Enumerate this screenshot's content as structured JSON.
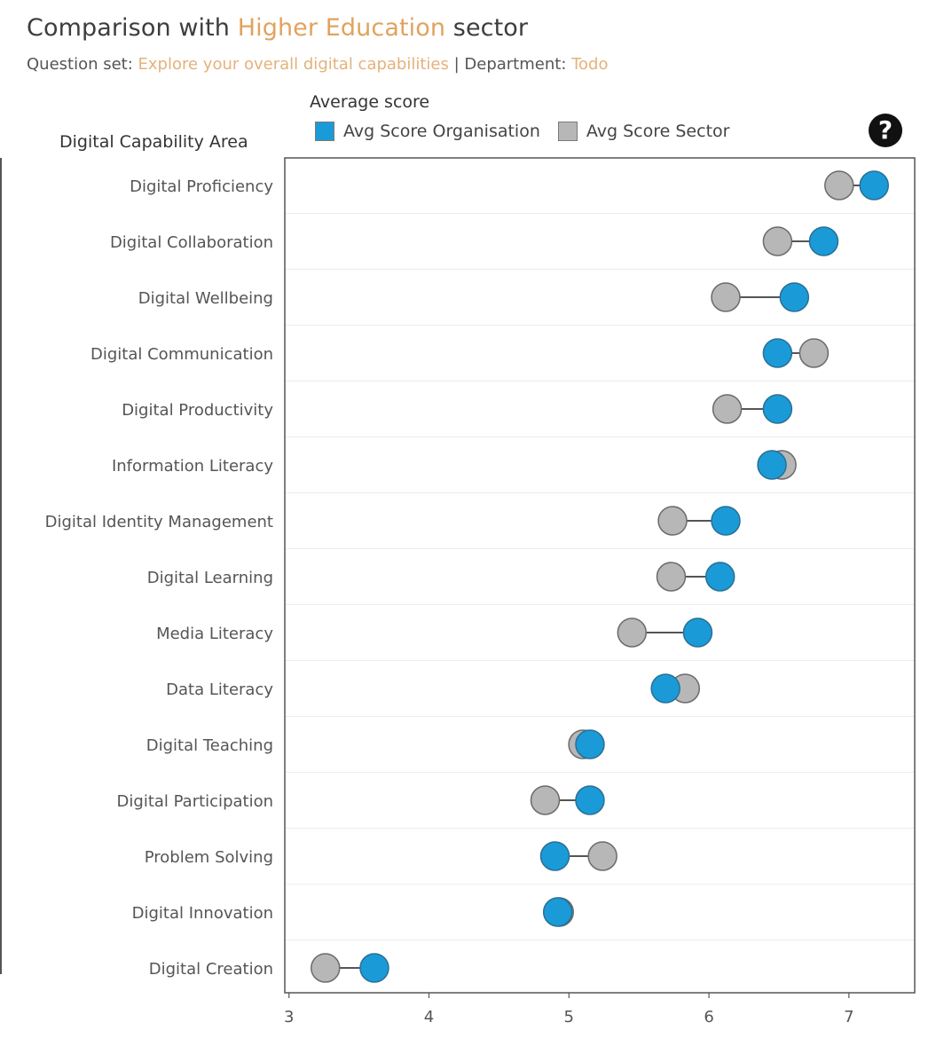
{
  "title": {
    "prefix": "Comparison with ",
    "highlight": "Higher Education",
    "suffix": " sector"
  },
  "subtitle": {
    "question_label": "Question set: ",
    "question_value": "Explore your overall digital capabilities",
    "separator": " | ",
    "department_label": "Department: ",
    "department_value": "Todo"
  },
  "help_symbol": "?",
  "colors": {
    "organisation": "#1a9bd7",
    "sector": "#b7b7b7",
    "connector": "#555555",
    "title_highlight": "#e0a35e"
  },
  "chart_data": {
    "type": "dumbbell",
    "title": "Comparison with Higher Education sector",
    "legend_title": "Average score",
    "legend_placement": "top",
    "category_axis_title": "Digital Capability Area",
    "xlabel": "",
    "xlim": [
      2.97,
      7.47
    ],
    "x_ticks": [
      3,
      4,
      5,
      6,
      7
    ],
    "grid": "horizontal-row-lines",
    "categories": [
      "Digital Proficiency",
      "Digital Collaboration",
      "Digital Wellbeing",
      "Digital Communication",
      "Digital Productivity",
      "Information Literacy",
      "Digital Identity Management",
      "Digital Learning",
      "Media Literacy",
      "Data Literacy",
      "Digital Teaching",
      "Digital Participation",
      "Problem Solving",
      "Digital Innovation",
      "Digital Creation"
    ],
    "series": [
      {
        "name": "Avg Score Organisation",
        "color": "#1a9bd7",
        "values": [
          7.18,
          6.82,
          6.61,
          6.49,
          6.49,
          6.45,
          6.12,
          6.08,
          5.92,
          5.69,
          5.15,
          5.15,
          4.9,
          4.92,
          3.61
        ]
      },
      {
        "name": "Avg Score Sector",
        "color": "#b7b7b7",
        "values": [
          6.93,
          6.49,
          6.12,
          6.75,
          6.13,
          6.52,
          5.74,
          5.73,
          5.45,
          5.83,
          5.1,
          4.83,
          5.24,
          4.93,
          3.26
        ]
      }
    ]
  }
}
